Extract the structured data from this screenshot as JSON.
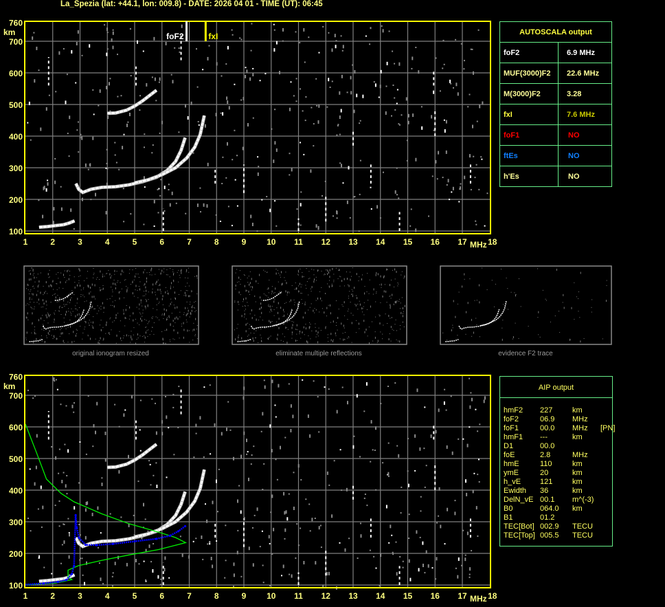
{
  "title": "La_Spezia (lat: +44.1, lon: 009.8) - DATE: 2026 04 01 - TIME (UT): 06:45",
  "colors": {
    "frame": "#ffff00",
    "grid": "#808080",
    "axis_text": "#ffff80",
    "table_border": "#66ee88",
    "profile": "#00ee00",
    "aip_trace": "#0000ff",
    "trace": "#ffffff"
  },
  "autoscala": {
    "header": "AUTOSCALA output",
    "rows": [
      {
        "label": "foF2",
        "value": "6.9 MHz",
        "label_color": "#ffffff",
        "value_color": "#ffffff"
      },
      {
        "label": "MUF(3000)F2",
        "value": "22.6 MHz",
        "label_color": "#ffff99",
        "value_color": "#ffff99"
      },
      {
        "label": "M(3000)F2",
        "value": "3.28",
        "label_color": "#ffff99",
        "value_color": "#ffff99"
      },
      {
        "label": "fxI",
        "value": "7.6 MHz",
        "label_color": "#ffff40",
        "value_color": "#c8c800"
      },
      {
        "label": "foF1",
        "value": "NO",
        "label_color": "#ff0000",
        "value_color": "#ff0000"
      },
      {
        "label": "ftEs",
        "value": "NO",
        "label_color": "#1080ff",
        "value_color": "#1080ff"
      },
      {
        "label": "h'Es",
        "value": "NO",
        "label_color": "#ffff99",
        "value_color": "#ffff99"
      }
    ]
  },
  "aip": {
    "header": "AIP output",
    "rows": [
      {
        "name": "hmF2",
        "value": "227",
        "unit": "km",
        "extra": ""
      },
      {
        "name": "foF2",
        "value": "06.9",
        "unit": "MHz",
        "extra": ""
      },
      {
        "name": "foF1",
        "value": "00.0",
        "unit": "MHz",
        "extra": "[PN]"
      },
      {
        "name": "hmF1",
        "value": "---",
        "unit": "km",
        "extra": ""
      },
      {
        "name": "D1",
        "value": "00.0",
        "unit": "",
        "extra": ""
      },
      {
        "name": "foE",
        "value": "2.8",
        "unit": "MHz",
        "extra": ""
      },
      {
        "name": "hmE",
        "value": "110",
        "unit": "km",
        "extra": ""
      },
      {
        "name": "ymE",
        "value": "20",
        "unit": "km",
        "extra": ""
      },
      {
        "name": "h_vE",
        "value": "121",
        "unit": "km",
        "extra": ""
      },
      {
        "name": "Ewidth",
        "value": "36",
        "unit": "km",
        "extra": ""
      },
      {
        "name": "DelN_vE",
        "value": "00.1",
        "unit": "m^(-3)",
        "extra": ""
      },
      {
        "name": "B0",
        "value": "064.0",
        "unit": "km",
        "extra": ""
      },
      {
        "name": "B1",
        "value": "01.2",
        "unit": "",
        "extra": ""
      },
      {
        "name": "TEC[Bot]",
        "value": "002.9",
        "unit": "TECU",
        "extra": ""
      },
      {
        "name": "TEC[Top]",
        "value": "005.5",
        "unit": "TECU",
        "extra": ""
      }
    ]
  },
  "thumbnails": [
    "original ionogram resized",
    "eliminate multiple reflections",
    "evidence F2 trace"
  ],
  "chart_data": [
    {
      "type": "scatter",
      "title": "",
      "xlabel": "MHz",
      "ylabel": "km",
      "xlim": [
        1,
        18
      ],
      "ylim": [
        100,
        760
      ],
      "x_ticks": [
        "1",
        "2",
        "3",
        "4",
        "5",
        "6",
        "7",
        "8",
        "9",
        "10",
        "11",
        "12",
        "13",
        "14",
        "15",
        "16",
        "17",
        "18"
      ],
      "y_ticks": [
        "100",
        "200",
        "300",
        "400",
        "500",
        "600",
        "700",
        "760"
      ],
      "grid": true,
      "markers": [
        {
          "label": "foF2",
          "x": 6.9
        },
        {
          "label": "fxI",
          "x": 7.6
        }
      ],
      "series": [
        {
          "points": [
            [
              1.5,
              112
            ],
            [
              1.8,
              114
            ],
            [
              2.1,
              117
            ],
            [
              2.4,
              120
            ],
            [
              2.6,
              125
            ],
            [
              2.8,
              132
            ]
          ]
        },
        {
          "points": [
            [
              2.85,
              250
            ],
            [
              2.95,
              232
            ],
            [
              3.1,
              222
            ],
            [
              3.4,
              232
            ],
            [
              3.8,
              238
            ],
            [
              4.3,
              240
            ],
            [
              4.8,
              246
            ],
            [
              5.3,
              256
            ],
            [
              5.8,
              270
            ],
            [
              6.2,
              292
            ],
            [
              6.5,
              320
            ],
            [
              6.7,
              355
            ],
            [
              6.85,
              395
            ]
          ]
        },
        {
          "points": [
            [
              5.0,
              252
            ],
            [
              5.5,
              262
            ],
            [
              6.0,
              278
            ],
            [
              6.5,
              300
            ],
            [
              6.9,
              330
            ],
            [
              7.2,
              365
            ],
            [
              7.4,
              405
            ],
            [
              7.5,
              445
            ],
            [
              7.55,
              465
            ]
          ]
        },
        {
          "points": [
            [
              4.0,
              472
            ],
            [
              4.3,
              473
            ],
            [
              4.7,
              482
            ],
            [
              5.0,
              495
            ],
            [
              5.3,
              512
            ],
            [
              5.6,
              532
            ],
            [
              5.8,
              545
            ]
          ]
        }
      ]
    },
    {
      "type": "line",
      "title": "",
      "xlabel": "MHz",
      "ylabel": "km",
      "xlim": [
        1,
        18
      ],
      "ylim": [
        100,
        760
      ],
      "x_ticks": [
        "1",
        "2",
        "3",
        "4",
        "5",
        "6",
        "7",
        "8",
        "9",
        "10",
        "11",
        "12",
        "13",
        "14",
        "15",
        "16",
        "17",
        "18"
      ],
      "y_ticks": [
        "100",
        "200",
        "300",
        "400",
        "500",
        "600",
        "700",
        "760"
      ],
      "grid": true,
      "series": [
        {
          "points": [
            [
              1.5,
              112
            ],
            [
              1.8,
              114
            ],
            [
              2.1,
              117
            ],
            [
              2.4,
              120
            ],
            [
              2.6,
              125
            ],
            [
              2.8,
              132
            ]
          ]
        },
        {
          "points": [
            [
              2.85,
              250
            ],
            [
              2.95,
              232
            ],
            [
              3.1,
              222
            ],
            [
              3.4,
              232
            ],
            [
              3.8,
              238
            ],
            [
              4.3,
              240
            ],
            [
              4.8,
              246
            ],
            [
              5.3,
              256
            ],
            [
              5.8,
              270
            ],
            [
              6.2,
              292
            ],
            [
              6.5,
              320
            ],
            [
              6.7,
              355
            ],
            [
              6.85,
              395
            ]
          ]
        },
        {
          "points": [
            [
              5.0,
              252
            ],
            [
              5.5,
              262
            ],
            [
              6.0,
              278
            ],
            [
              6.5,
              300
            ],
            [
              6.9,
              330
            ],
            [
              7.2,
              365
            ],
            [
              7.4,
              405
            ],
            [
              7.5,
              445
            ],
            [
              7.55,
              465
            ]
          ]
        },
        {
          "points": [
            [
              4.0,
              472
            ],
            [
              4.3,
              473
            ],
            [
              4.7,
              482
            ],
            [
              5.0,
              495
            ],
            [
              5.3,
              512
            ],
            [
              5.6,
              532
            ],
            [
              5.8,
              545
            ]
          ]
        },
        {
          "kind": "profile",
          "points": [
            [
              1.0,
              609
            ],
            [
              1.4,
              520
            ],
            [
              1.77,
              435
            ],
            [
              2.3,
              390
            ],
            [
              2.78,
              363
            ],
            [
              3.8,
              325
            ],
            [
              4.79,
              294
            ],
            [
              5.96,
              265
            ],
            [
              6.5,
              250
            ],
            [
              6.87,
              234
            ],
            [
              5.87,
              212
            ],
            [
              4.79,
              195
            ],
            [
              3.8,
              178
            ],
            [
              2.94,
              161
            ],
            [
              2.56,
              147
            ],
            [
              2.56,
              125
            ],
            [
              2.7,
              117
            ],
            [
              2.1,
              106
            ],
            [
              1.0,
              100
            ]
          ]
        },
        {
          "kind": "aip",
          "points": [
            [
              1.0,
              101
            ],
            [
              1.66,
              105
            ],
            [
              2.2,
              110
            ],
            [
              2.5,
              116
            ],
            [
              2.7,
              135
            ],
            [
              2.78,
              161
            ],
            [
              2.84,
              321
            ],
            [
              2.88,
              280
            ],
            [
              2.96,
              250
            ],
            [
              3.2,
              227
            ],
            [
              3.6,
              226
            ],
            [
              4.2,
              230
            ],
            [
              5.0,
              238
            ],
            [
              5.8,
              246
            ],
            [
              6.3,
              256
            ],
            [
              6.6,
              270
            ],
            [
              6.85,
              286
            ]
          ]
        }
      ]
    }
  ]
}
